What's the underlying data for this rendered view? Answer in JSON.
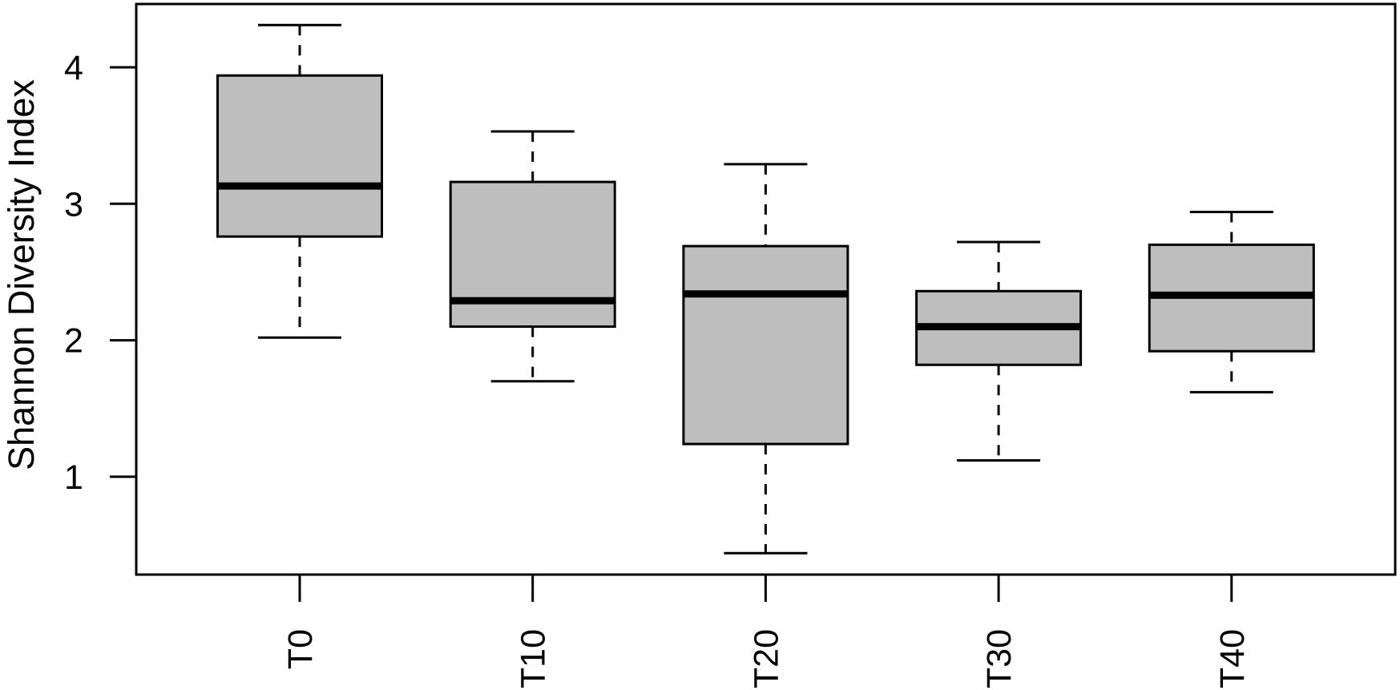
{
  "chart_data": {
    "type": "boxplot",
    "title": "",
    "xlabel": "",
    "ylabel": "Shannon Diversity Index",
    "categories": [
      "T0",
      "T10",
      "T20",
      "T30",
      "T40"
    ],
    "ylim": [
      0.3,
      4.45
    ],
    "yticks": [
      1,
      2,
      3,
      4
    ],
    "grid": false,
    "legend": null,
    "fill_color": "#BEBEBE",
    "line_color": "#000000",
    "boxes": [
      {
        "label": "T0",
        "whisker_low": 2.02,
        "q1": 2.76,
        "median": 3.13,
        "q3": 3.94,
        "whisker_high": 4.31
      },
      {
        "label": "T10",
        "whisker_low": 1.7,
        "q1": 2.1,
        "median": 2.29,
        "q3": 3.16,
        "whisker_high": 3.53
      },
      {
        "label": "T20",
        "whisker_low": 0.44,
        "q1": 1.24,
        "median": 2.34,
        "q3": 2.69,
        "whisker_high": 3.29
      },
      {
        "label": "T30",
        "whisker_low": 1.12,
        "q1": 1.82,
        "median": 2.1,
        "q3": 2.36,
        "whisker_high": 2.72
      },
      {
        "label": "T40",
        "whisker_low": 1.62,
        "q1": 1.92,
        "median": 2.33,
        "q3": 2.7,
        "whisker_high": 2.94
      }
    ]
  }
}
